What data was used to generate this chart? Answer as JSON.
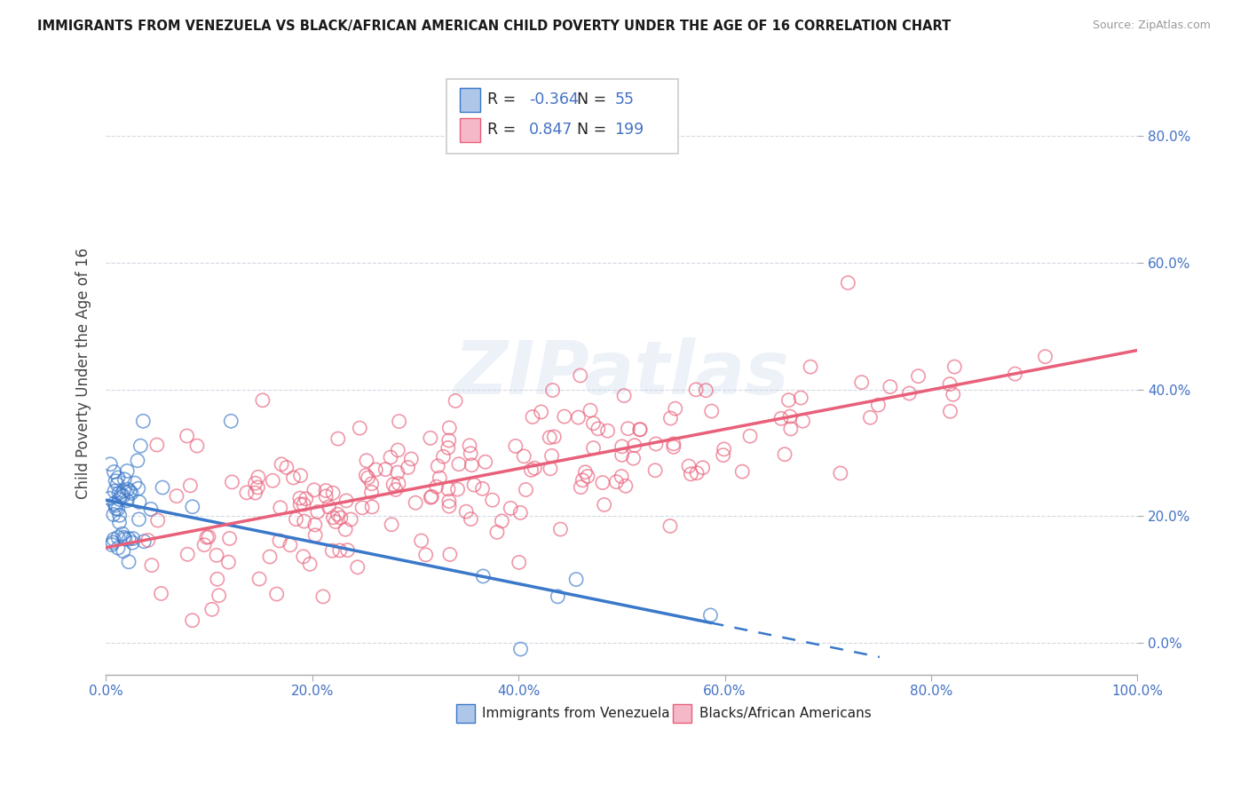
{
  "title": "IMMIGRANTS FROM VENEZUELA VS BLACK/AFRICAN AMERICAN CHILD POVERTY UNDER THE AGE OF 16 CORRELATION CHART",
  "source": "Source: ZipAtlas.com",
  "ylabel": "Child Poverty Under the Age of 16",
  "xlim": [
    0,
    1.0
  ],
  "ylim": [
    -0.05,
    0.9
  ],
  "blue_color": "#aec6e8",
  "pink_color": "#f5b8c8",
  "blue_line_color": "#3a78c9",
  "pink_line_color": "#e8607a",
  "background_color": "#ffffff",
  "watermark": "ZIPatlas",
  "seed": 42,
  "blue_r": -0.364,
  "blue_n": 55,
  "pink_r": 0.847,
  "pink_n": 199,
  "grid_color": "#c8d0dc",
  "tick_label_color": "#4472c4",
  "title_color": "#1a1a1a",
  "ylabel_color": "#444444"
}
